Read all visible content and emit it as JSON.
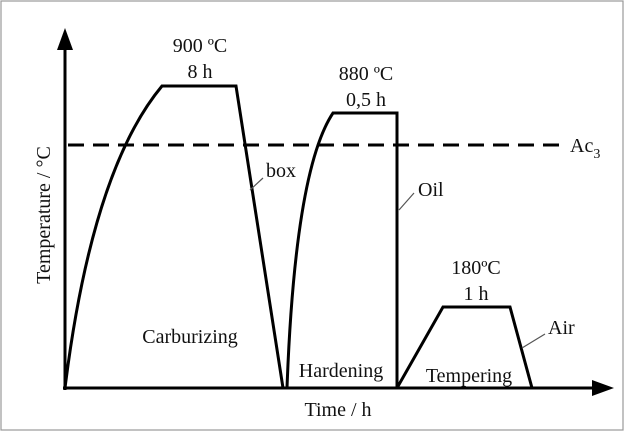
{
  "axes": {
    "y_label": "Temperature / °C",
    "x_label": "Time / h"
  },
  "reference_line": {
    "label": "Ac",
    "subscript": "3"
  },
  "stages": [
    {
      "name": "Carburizing",
      "temperature": "900 ºC",
      "time": "8 h",
      "medium": "box"
    },
    {
      "name": "Hardening",
      "temperature": "880 ºC",
      "time": "0,5 h",
      "medium": "Oil"
    },
    {
      "name": "Tempering",
      "temperature": "180ºC",
      "time": "1 h",
      "medium": "Air"
    }
  ]
}
